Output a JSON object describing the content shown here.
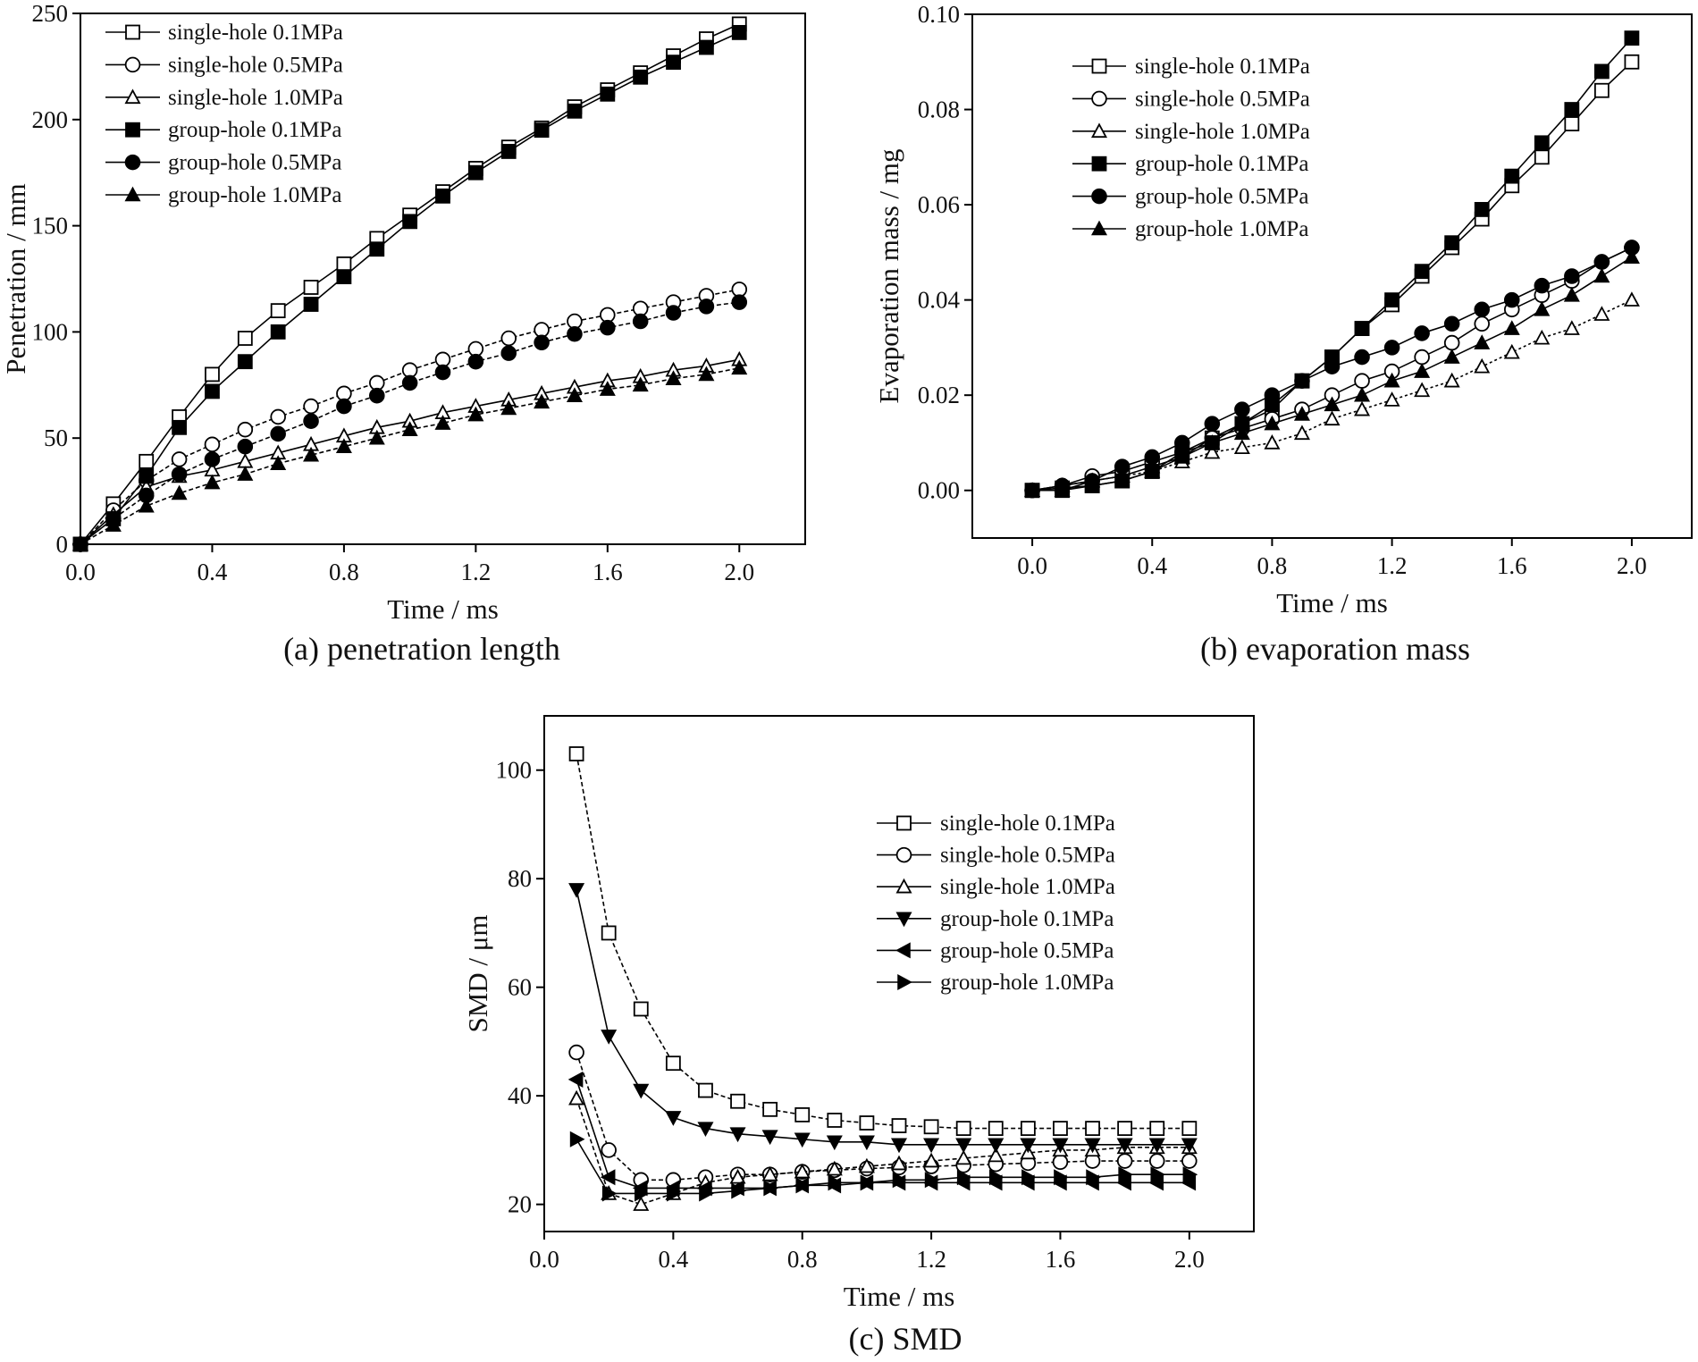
{
  "chart_data": [
    {
      "type": "line",
      "caption": "(a) penetration length",
      "xlabel": "Time / ms",
      "ylabel": "Penetration / mm",
      "xlim": [
        0,
        2.2
      ],
      "ylim": [
        0,
        250
      ],
      "xticks": [
        "0.0",
        "0.4",
        "0.8",
        "1.2",
        "1.6",
        "2.0"
      ],
      "yticks": [
        "0",
        "50",
        "100",
        "150",
        "200",
        "250"
      ],
      "legend_position": "top-left",
      "grid": false,
      "x": [
        0,
        0.1,
        0.2,
        0.3,
        0.4,
        0.5,
        0.6,
        0.7,
        0.8,
        0.9,
        1.0,
        1.1,
        1.2,
        1.3,
        1.4,
        1.5,
        1.6,
        1.7,
        1.8,
        1.9,
        2.0
      ],
      "series": [
        {
          "name": "single-hole 0.1MPa",
          "marker": "square-open",
          "values": [
            0,
            19,
            39,
            60,
            80,
            97,
            110,
            121,
            132,
            144,
            155,
            166,
            177,
            187,
            196,
            206,
            214,
            222,
            230,
            238,
            245
          ]
        },
        {
          "name": "single-hole 0.5MPa",
          "marker": "circle-open",
          "values": [
            0,
            16,
            30,
            40,
            47,
            54,
            60,
            65,
            71,
            76,
            82,
            87,
            92,
            97,
            101,
            105,
            108,
            111,
            114,
            117,
            120
          ]
        },
        {
          "name": "single-hole 1.0MPa",
          "marker": "triangle-open",
          "values": [
            0,
            14,
            27,
            32,
            35,
            39,
            43,
            47,
            51,
            55,
            58,
            62,
            65,
            68,
            71,
            74,
            77,
            79,
            82,
            84,
            87
          ]
        },
        {
          "name": "group-hole 0.1MPa",
          "marker": "square-filled",
          "values": [
            0,
            12,
            32,
            55,
            72,
            86,
            100,
            113,
            126,
            139,
            152,
            164,
            175,
            185,
            195,
            204,
            212,
            220,
            227,
            234,
            241
          ]
        },
        {
          "name": "group-hole 0.5MPa",
          "marker": "circle-filled",
          "values": [
            0,
            12,
            23,
            33,
            40,
            46,
            52,
            58,
            65,
            70,
            76,
            81,
            86,
            90,
            95,
            99,
            102,
            105,
            109,
            112,
            114
          ]
        },
        {
          "name": "group-hole 1.0MPa",
          "marker": "triangle-filled",
          "values": [
            0,
            9,
            18,
            24,
            29,
            33,
            38,
            42,
            46,
            50,
            54,
            57,
            61,
            64,
            67,
            70,
            73,
            75,
            78,
            80,
            83
          ]
        }
      ]
    },
    {
      "type": "line",
      "caption": "(b) evaporation mass",
      "xlabel": "Time / ms",
      "ylabel": "Evaporation mass / mg",
      "xlim": [
        -0.2,
        2.2
      ],
      "ylim": [
        -0.01,
        0.1
      ],
      "xticks": [
        "0.0",
        "0.4",
        "0.8",
        "1.2",
        "1.6",
        "2.0"
      ],
      "yticks": [
        "0.00",
        "0.02",
        "0.04",
        "0.06",
        "0.08",
        "0.10"
      ],
      "legend_position": "top-left",
      "grid": false,
      "x": [
        0,
        0.1,
        0.2,
        0.3,
        0.4,
        0.5,
        0.6,
        0.7,
        0.8,
        0.9,
        1.0,
        1.1,
        1.2,
        1.3,
        1.4,
        1.5,
        1.6,
        1.7,
        1.8,
        1.9,
        2.0
      ],
      "series": [
        {
          "name": "single-hole 0.1MPa",
          "marker": "square-open",
          "values": [
            0,
            0.0005,
            0.001,
            0.002,
            0.004,
            0.007,
            0.011,
            0.014,
            0.017,
            0.023,
            0.028,
            0.034,
            0.039,
            0.045,
            0.051,
            0.057,
            0.064,
            0.07,
            0.077,
            0.084,
            0.09
          ]
        },
        {
          "name": "single-hole 0.5MPa",
          "marker": "circle-open",
          "values": [
            0,
            0.001,
            0.003,
            0.004,
            0.006,
            0.008,
            0.011,
            0.013,
            0.015,
            0.017,
            0.02,
            0.023,
            0.025,
            0.028,
            0.031,
            0.035,
            0.038,
            0.041,
            0.044,
            0.048,
            0.051
          ]
        },
        {
          "name": "single-hole 1.0MPa",
          "marker": "triangle-open",
          "values": [
            0,
            0.001,
            0.002,
            0.003,
            0.004,
            0.006,
            0.008,
            0.009,
            0.01,
            0.012,
            0.015,
            0.017,
            0.019,
            0.021,
            0.023,
            0.026,
            0.029,
            0.032,
            0.034,
            0.037,
            0.04
          ]
        },
        {
          "name": "group-hole 0.1MPa",
          "marker": "square-filled",
          "values": [
            0,
            0,
            0.001,
            0.002,
            0.004,
            0.008,
            0.01,
            0.014,
            0.018,
            0.023,
            0.028,
            0.034,
            0.04,
            0.046,
            0.052,
            0.059,
            0.066,
            0.073,
            0.08,
            0.088,
            0.095
          ]
        },
        {
          "name": "group-hole 0.5MPa",
          "marker": "circle-filled",
          "values": [
            0,
            0.001,
            0.002,
            0.005,
            0.007,
            0.01,
            0.014,
            0.017,
            0.02,
            0.023,
            0.026,
            0.028,
            0.03,
            0.033,
            0.035,
            0.038,
            0.04,
            0.043,
            0.045,
            0.048,
            0.051
          ]
        },
        {
          "name": "group-hole 1.0MPa",
          "marker": "triangle-filled",
          "values": [
            0,
            0,
            0.002,
            0.003,
            0.005,
            0.007,
            0.01,
            0.012,
            0.014,
            0.016,
            0.018,
            0.02,
            0.023,
            0.025,
            0.028,
            0.031,
            0.034,
            0.038,
            0.041,
            0.045,
            0.049
          ]
        }
      ]
    },
    {
      "type": "line",
      "caption": "(c) SMD",
      "xlabel": "Time / ms",
      "ylabel": "SMD / μm",
      "xlim": [
        0,
        2.2
      ],
      "ylim": [
        15,
        110
      ],
      "xticks": [
        "0.0",
        "0.4",
        "0.8",
        "1.2",
        "1.6",
        "2.0"
      ],
      "yticks": [
        "20",
        "40",
        "60",
        "80",
        "100"
      ],
      "legend_position": "right",
      "grid": false,
      "x": [
        0.1,
        0.2,
        0.3,
        0.4,
        0.5,
        0.6,
        0.7,
        0.8,
        0.9,
        1.0,
        1.1,
        1.2,
        1.3,
        1.4,
        1.5,
        1.6,
        1.7,
        1.8,
        1.9,
        2.0
      ],
      "series": [
        {
          "name": "single-hole 0.1MPa",
          "marker": "square-open",
          "values": [
            103,
            70,
            56,
            46,
            41,
            39,
            37.5,
            36.5,
            35.5,
            35,
            34.5,
            34.3,
            34,
            34,
            34,
            34,
            34,
            34,
            34,
            34
          ]
        },
        {
          "name": "single-hole 0.5MPa",
          "marker": "circle-open",
          "values": [
            48,
            30,
            24.5,
            24.5,
            25,
            25.5,
            25.5,
            26,
            26.3,
            26.6,
            26.8,
            27,
            27.2,
            27.4,
            27.6,
            27.8,
            28,
            28,
            28,
            28
          ]
        },
        {
          "name": "single-hole 1.0MPa",
          "marker": "triangle-open",
          "values": [
            39.5,
            22,
            20,
            22,
            24,
            25,
            25.5,
            26,
            26.5,
            27,
            27.5,
            28,
            28.5,
            29,
            29.5,
            30,
            30,
            30.5,
            30.5,
            30.5
          ]
        },
        {
          "name": "group-hole 0.1MPa",
          "marker": "triangle-down-filled",
          "values": [
            78,
            51,
            41,
            36,
            34,
            33,
            32.5,
            32,
            31.5,
            31.5,
            31,
            31,
            31,
            31,
            31,
            31,
            31,
            31,
            31,
            31
          ]
        },
        {
          "name": "group-hole 0.5MPa",
          "marker": "triangle-left-filled",
          "values": [
            43,
            25,
            23,
            23,
            23,
            23,
            23,
            23.5,
            23.5,
            24,
            24,
            24,
            24,
            24,
            24,
            24,
            24,
            24,
            24,
            24
          ]
        },
        {
          "name": "group-hole 1.0MPa",
          "marker": "triangle-right-filled",
          "values": [
            32,
            22,
            22,
            22,
            22,
            22.5,
            23,
            23.5,
            24,
            24,
            24.5,
            24.5,
            25,
            25,
            25,
            25,
            25,
            25.5,
            25.5,
            25.5
          ]
        }
      ]
    }
  ]
}
